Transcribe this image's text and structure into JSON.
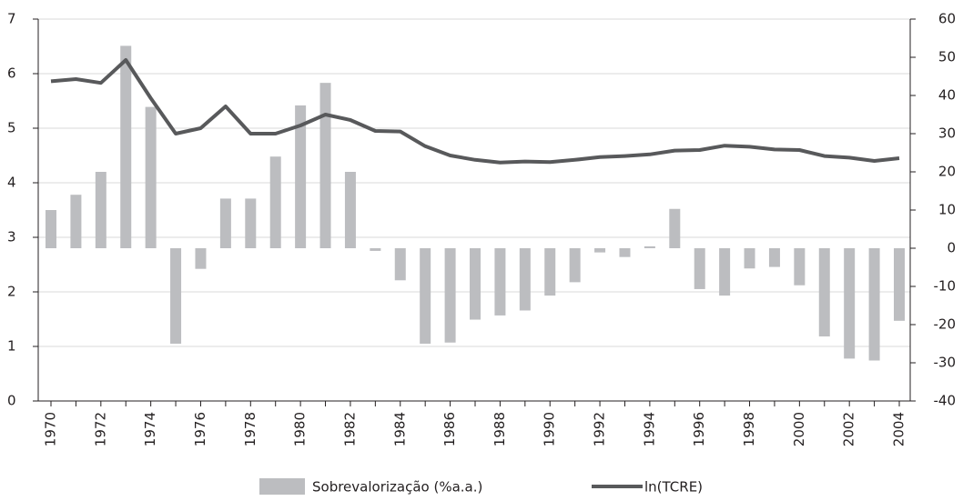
{
  "chart_data": {
    "type": "combo",
    "categories": [
      "1970",
      null,
      "1972",
      null,
      "1974",
      null,
      "1976",
      null,
      "1978",
      null,
      "1980",
      null,
      "1982",
      null,
      "1984",
      null,
      "1986",
      null,
      "1988",
      null,
      "1990",
      null,
      "1992",
      null,
      "1994",
      null,
      "1996",
      null,
      "1998",
      null,
      "2000",
      null,
      "2002",
      null,
      "2004"
    ],
    "series": [
      {
        "name": "Sobrevalorização (%a.a.)",
        "type": "bar",
        "axis": "y2",
        "color": "#bcbdc0",
        "values": [
          10,
          14,
          20,
          53,
          37,
          -25,
          -5.4,
          13,
          13,
          24,
          37.4,
          43.3,
          20,
          -0.7,
          -8.4,
          -25,
          -24.7,
          -18.7,
          -17.6,
          -16.3,
          -12.4,
          -8.9,
          -1.1,
          -2.3,
          0.5,
          10.3,
          -10.7,
          -12.4,
          -5.3,
          -4.9,
          -9.7,
          -23.1,
          -28.9,
          -29.4,
          -19
        ]
      },
      {
        "name": "ln(TCRE)",
        "type": "line",
        "color": "#58595b",
        "values": [
          5.86,
          5.9,
          5.83,
          6.25,
          5.55,
          4.9,
          5.0,
          5.4,
          4.9,
          4.9,
          5.05,
          5.25,
          5.15,
          4.95,
          4.94,
          4.67,
          4.5,
          4.42,
          4.37,
          4.39,
          4.38,
          4.42,
          4.47,
          4.49,
          4.52,
          4.59,
          4.6,
          4.68,
          4.66,
          4.61,
          4.6,
          4.49,
          4.46,
          4.4,
          4.45
        ]
      }
    ],
    "ylim": [
      0,
      7
    ],
    "yticks": [
      0,
      1,
      2,
      3,
      4,
      5,
      6,
      7
    ],
    "y2lim": [
      -40,
      60
    ],
    "y2ticks": [
      -40,
      -30,
      -20,
      -10,
      0,
      10,
      20,
      30,
      40,
      50,
      60
    ],
    "grid": true,
    "legend": "bottom"
  }
}
